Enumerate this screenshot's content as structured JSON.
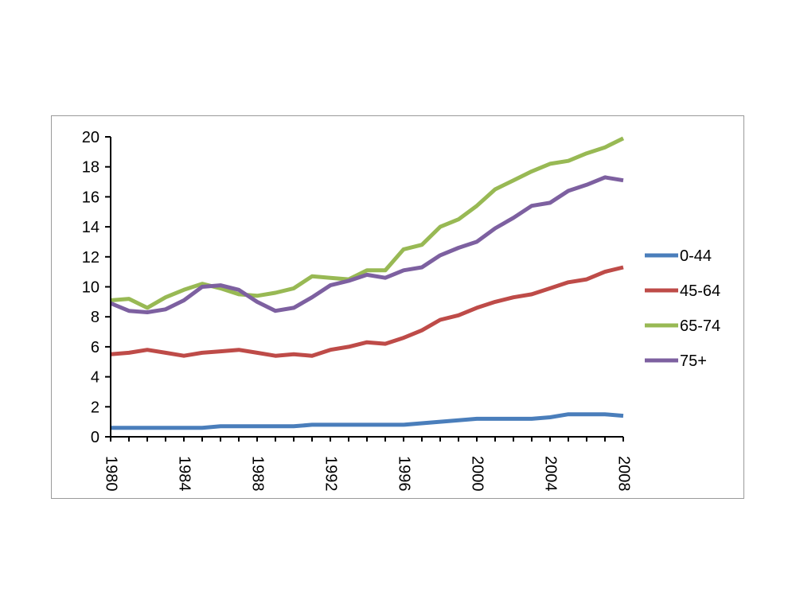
{
  "chart_data": {
    "type": "line",
    "title": "",
    "xlabel": "",
    "ylabel": "",
    "ylim": [
      0,
      20
    ],
    "y_ticks": [
      0,
      2,
      4,
      6,
      8,
      10,
      12,
      14,
      16,
      18,
      20
    ],
    "xlim": [
      1980,
      2008
    ],
    "x_ticks": [
      1980,
      1984,
      1988,
      1992,
      1996,
      2000,
      2004,
      2008
    ],
    "x": [
      1980,
      1981,
      1982,
      1983,
      1984,
      1985,
      1986,
      1987,
      1988,
      1989,
      1990,
      1991,
      1992,
      1993,
      1994,
      1995,
      1996,
      1997,
      1998,
      1999,
      2000,
      2001,
      2002,
      2003,
      2004,
      2005,
      2006,
      2007,
      2008
    ],
    "grid": false,
    "legend_position": "right",
    "series": [
      {
        "name": "0-44",
        "color": "#4A7EBB",
        "values": [
          0.6,
          0.6,
          0.6,
          0.6,
          0.6,
          0.6,
          0.7,
          0.7,
          0.7,
          0.7,
          0.7,
          0.8,
          0.8,
          0.8,
          0.8,
          0.8,
          0.8,
          0.9,
          1.0,
          1.1,
          1.2,
          1.2,
          1.2,
          1.2,
          1.3,
          1.5,
          1.5,
          1.5,
          1.4
        ]
      },
      {
        "name": "45-64",
        "color": "#BE4B48",
        "values": [
          5.5,
          5.6,
          5.8,
          5.6,
          5.4,
          5.6,
          5.7,
          5.8,
          5.6,
          5.4,
          5.5,
          5.4,
          5.8,
          6.0,
          6.3,
          6.2,
          6.6,
          7.1,
          7.8,
          8.1,
          8.6,
          9.0,
          9.3,
          9.5,
          9.9,
          10.3,
          10.5,
          11.0,
          11.3
        ]
      },
      {
        "name": "65-74",
        "color": "#98B954",
        "values": [
          9.1,
          9.2,
          8.6,
          9.3,
          9.8,
          10.2,
          9.9,
          9.5,
          9.4,
          9.6,
          9.9,
          10.7,
          10.6,
          10.5,
          11.1,
          11.1,
          12.5,
          12.8,
          14.0,
          14.5,
          15.4,
          16.5,
          17.1,
          17.7,
          18.2,
          18.4,
          18.9,
          19.3,
          19.9
        ]
      },
      {
        "name": "75+",
        "color": "#7D60A0",
        "values": [
          8.9,
          8.4,
          8.3,
          8.5,
          9.1,
          10.0,
          10.1,
          9.8,
          9.0,
          8.4,
          8.6,
          9.3,
          10.1,
          10.4,
          10.8,
          10.6,
          11.1,
          11.3,
          12.1,
          12.6,
          13.0,
          13.9,
          14.6,
          15.4,
          15.6,
          16.4,
          16.8,
          17.3,
          17.1
        ]
      }
    ]
  }
}
